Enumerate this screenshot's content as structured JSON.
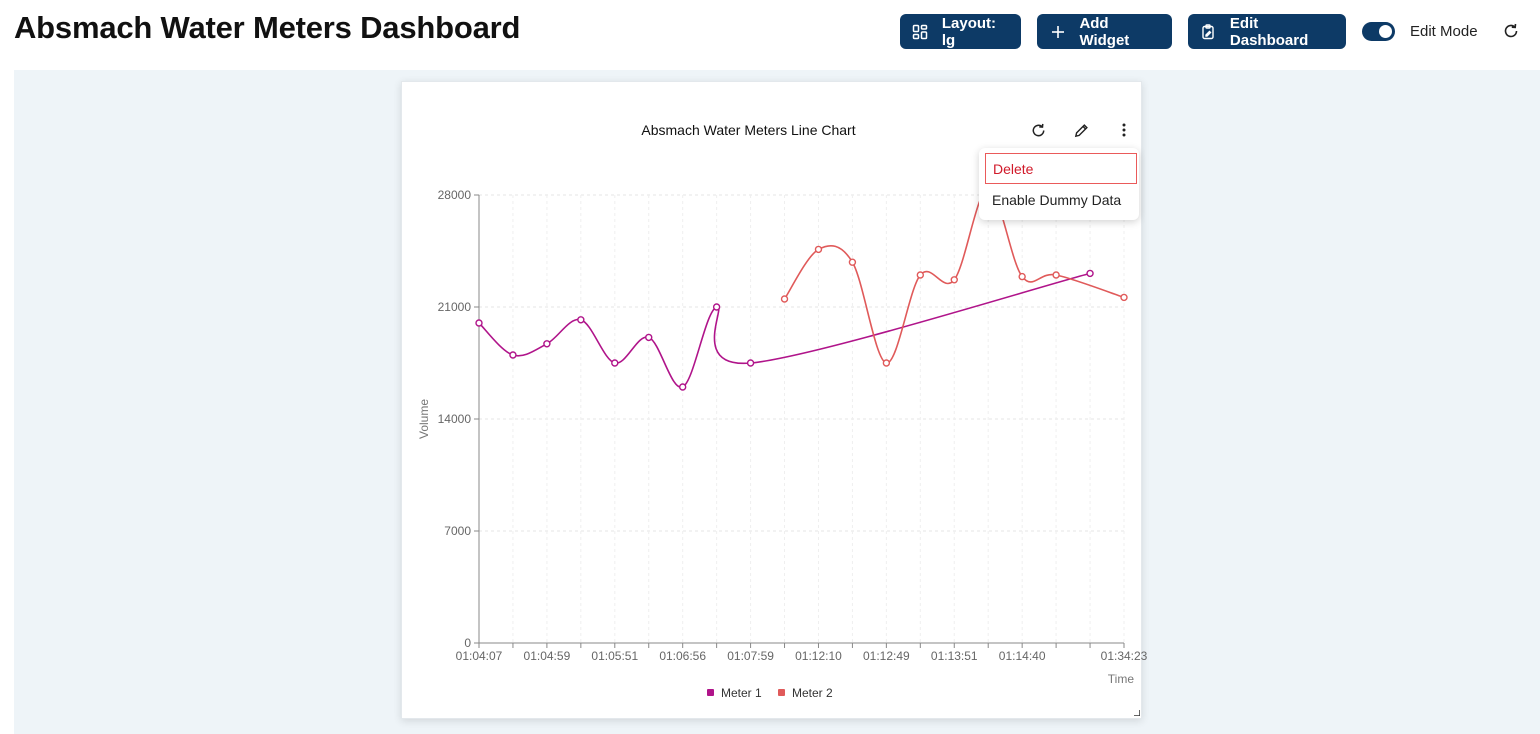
{
  "header": {
    "title": "Absmach Water Meters Dashboard",
    "layout_label": "Layout: lg",
    "add_widget_label": "Add Widget",
    "edit_dashboard_label": "Edit Dashboard",
    "edit_mode_label": "Edit Mode",
    "edit_mode_on": true
  },
  "widget": {
    "menu": {
      "delete_label": "Delete",
      "dummy_label": "Enable Dummy Data"
    }
  },
  "colors": {
    "brand": "#0d3a66",
    "meter1": "#b0148a",
    "meter2": "#e05a5a",
    "canvas": "#eef4f8"
  },
  "chart_data": {
    "type": "line",
    "title": "Absmach Water Meters Line Chart",
    "xlabel": "Time",
    "ylabel": "Volume",
    "ylim": [
      0,
      28000
    ],
    "yticks": [
      0,
      7000,
      14000,
      21000,
      28000
    ],
    "x_axis_labels": [
      "01:04:07",
      "01:04:59",
      "01:05:51",
      "01:06:56",
      "01:07:59",
      "01:12:10",
      "01:12:49",
      "01:13:51",
      "01:14:40",
      "01:34:23"
    ],
    "legend_position": "bottom",
    "series": [
      {
        "name": "Meter 1",
        "color": "#b0148a",
        "points": [
          {
            "x": 0,
            "y": 20000
          },
          {
            "x": 1,
            "y": 18000
          },
          {
            "x": 2,
            "y": 18700
          },
          {
            "x": 3,
            "y": 20200
          },
          {
            "x": 4,
            "y": 17500
          },
          {
            "x": 5,
            "y": 19100
          },
          {
            "x": 6,
            "y": 16000
          },
          {
            "x": 7,
            "y": 21000
          },
          {
            "x": 8,
            "y": 17500
          },
          {
            "x": 18,
            "y": 23100
          }
        ]
      },
      {
        "name": "Meter 2",
        "color": "#e05a5a",
        "points": [
          {
            "x": 9,
            "y": 21500
          },
          {
            "x": 10,
            "y": 24600
          },
          {
            "x": 11,
            "y": 23800
          },
          {
            "x": 12,
            "y": 17500
          },
          {
            "x": 13,
            "y": 23000
          },
          {
            "x": 14,
            "y": 22700
          },
          {
            "x": 15,
            "y": 28400
          },
          {
            "x": 16,
            "y": 22900
          },
          {
            "x": 17,
            "y": 23000
          },
          {
            "x": 19,
            "y": 21600
          }
        ]
      }
    ]
  }
}
